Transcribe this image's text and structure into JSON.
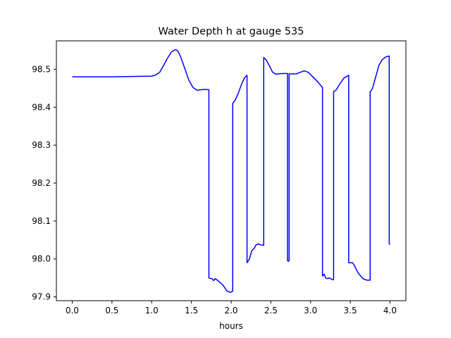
{
  "chart_data": {
    "type": "line",
    "title": "Water Depth h at gauge 535",
    "xlabel": "hours",
    "ylabel": "",
    "xlim": [
      -0.2,
      4.2
    ],
    "ylim": [
      97.89,
      98.575
    ],
    "grid": false,
    "legend": "none",
    "xticks": [
      0.0,
      0.5,
      1.0,
      1.5,
      2.0,
      2.5,
      3.0,
      3.5,
      4.0
    ],
    "xtick_labels": [
      "0.0",
      "0.5",
      "1.0",
      "1.5",
      "2.0",
      "2.5",
      "3.0",
      "3.5",
      "4.0"
    ],
    "yticks": [
      97.9,
      98.0,
      98.1,
      98.2,
      98.3,
      98.4,
      98.5
    ],
    "ytick_labels": [
      "97.9",
      "98.0",
      "98.1",
      "98.2",
      "98.3",
      "98.4",
      "98.5"
    ],
    "line_color": "#0000ff",
    "series": [
      {
        "x": [
          0.0,
          0.5,
          1.0,
          1.05,
          1.1,
          1.15,
          1.2,
          1.25,
          1.3,
          1.33,
          1.37,
          1.42,
          1.47,
          1.52,
          1.57,
          1.62,
          1.67,
          1.72,
          1.72,
          1.73,
          1.76,
          1.78,
          1.8,
          1.82,
          1.85,
          1.9,
          1.95,
          1.99,
          2.02,
          2.02,
          2.05,
          2.09,
          2.13,
          2.17,
          2.2,
          2.2,
          2.23,
          2.26,
          2.29,
          2.31,
          2.34,
          2.37,
          2.41,
          2.41,
          2.44,
          2.48,
          2.52,
          2.56,
          2.6,
          2.66,
          2.71,
          2.71,
          2.72,
          2.73,
          2.73,
          2.76,
          2.82,
          2.87,
          2.92,
          2.97,
          3.03,
          3.09,
          3.15,
          3.15,
          3.17,
          3.19,
          3.21,
          3.24,
          3.26,
          3.28,
          3.29,
          3.29,
          3.32,
          3.37,
          3.42,
          3.47,
          3.48,
          3.48,
          3.51,
          3.53,
          3.55,
          3.57,
          3.58,
          3.61,
          3.66,
          3.71,
          3.75,
          3.75,
          3.78,
          3.82,
          3.86,
          3.9,
          3.95,
          3.99,
          3.99,
          4.0
        ],
        "values": [
          98.48,
          98.48,
          98.482,
          98.485,
          98.492,
          98.51,
          98.53,
          98.546,
          98.552,
          98.548,
          98.53,
          98.5,
          98.47,
          98.452,
          98.445,
          98.446,
          98.447,
          98.446,
          97.95,
          97.949,
          97.948,
          97.943,
          97.948,
          97.945,
          97.94,
          97.93,
          97.915,
          97.912,
          97.915,
          98.41,
          98.418,
          98.437,
          98.46,
          98.478,
          98.484,
          97.99,
          98.0,
          98.022,
          98.028,
          98.036,
          98.04,
          98.037,
          98.036,
          98.531,
          98.525,
          98.51,
          98.493,
          98.487,
          98.488,
          98.489,
          98.489,
          97.995,
          97.994,
          97.995,
          98.488,
          98.488,
          98.488,
          98.492,
          98.496,
          98.492,
          98.48,
          98.467,
          98.452,
          97.955,
          97.96,
          97.95,
          97.948,
          97.95,
          97.947,
          97.945,
          97.946,
          98.441,
          98.445,
          98.462,
          98.477,
          98.483,
          98.484,
          97.99,
          97.99,
          97.99,
          97.983,
          97.975,
          97.97,
          97.96,
          97.948,
          97.944,
          97.944,
          98.44,
          98.45,
          98.48,
          98.51,
          98.525,
          98.533,
          98.535,
          98.04,
          98.038
        ]
      }
    ]
  }
}
